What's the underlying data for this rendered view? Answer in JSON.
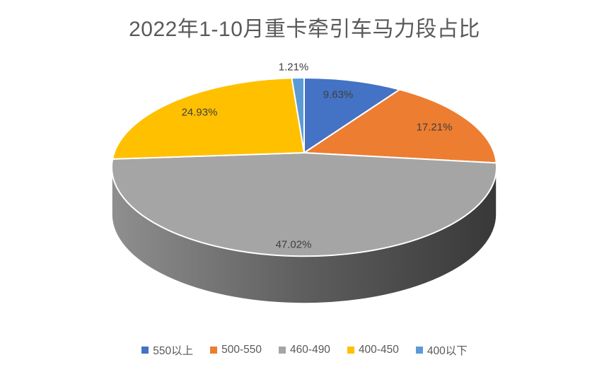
{
  "chart_title": "2022年1-10月重卡牵引车马力段占比",
  "chart_data": {
    "type": "pie",
    "style": "3d",
    "title": "2022年1-10月重卡牵引车马力段占比",
    "unit": "%",
    "legend_position": "bottom",
    "start_angle_deg": 0,
    "direction": "clockwise",
    "categories": [
      "550以上",
      "500-550",
      "460-490",
      "400-450",
      "400以下"
    ],
    "values": [
      9.63,
      17.21,
      47.02,
      24.93,
      1.21
    ],
    "slices": [
      {
        "name": "550以上",
        "value": 9.63,
        "label": "9.63%",
        "color": "#4472C4"
      },
      {
        "name": "500-550",
        "value": 17.21,
        "label": "17.21%",
        "color": "#ED7D31"
      },
      {
        "name": "460-490",
        "value": 47.02,
        "label": "47.02%",
        "color": "#A5A5A5"
      },
      {
        "name": "400-450",
        "value": 24.93,
        "label": "24.93%",
        "color": "#FFC000"
      },
      {
        "name": "400以下",
        "value": 1.21,
        "label": "1.21%",
        "color": "#5B9BD5"
      }
    ],
    "colors": {
      "background": "#FFFFFF",
      "title_text": "#595959",
      "label_text": "#404040",
      "legend_text": "#595959",
      "slice_border": "#FFFFFF",
      "side_gradient": [
        "#8F8F8F",
        "#5E5E5E",
        "#383838"
      ]
    }
  }
}
